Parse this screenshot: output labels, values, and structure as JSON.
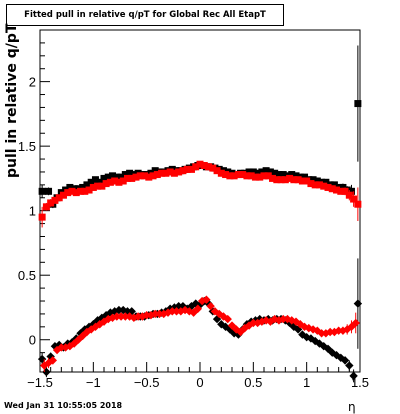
{
  "chart_data": {
    "type": "scatter",
    "title": "Fitted pull in relative q/pT for Global Rec All EtapT",
    "xlabel": "η",
    "ylabel": "pull in relative q/pT",
    "xlim": [
      -1.5,
      1.5
    ],
    "ylim": [
      -0.25,
      2.4
    ],
    "x_ticks": [
      "−1.5",
      "−1",
      "−0.5",
      "0",
      "0.5",
      "1",
      "1.5"
    ],
    "y_ticks": [
      "0",
      "0.5",
      "1",
      "1.5",
      "2"
    ],
    "legend": "none",
    "grid": false,
    "footer": "Wed Jan 31 10:55:05 2018",
    "series": [
      {
        "color": "#000000",
        "marker": "square",
        "x": [
          -1.48,
          -1.42,
          -1.38,
          -1.34,
          -1.3,
          -1.26,
          -1.22,
          -1.18,
          -1.14,
          -1.1,
          -1.06,
          -1.02,
          -0.98,
          -0.94,
          -0.9,
          -0.86,
          -0.82,
          -0.78,
          -0.74,
          -0.7,
          -0.66,
          -0.62,
          -0.58,
          -0.54,
          -0.5,
          -0.46,
          -0.42,
          -0.38,
          -0.34,
          -0.3,
          -0.26,
          -0.22,
          -0.18,
          -0.14,
          -0.1,
          -0.06,
          -0.02,
          0.02,
          0.06,
          0.1,
          0.14,
          0.18,
          0.22,
          0.26,
          0.3,
          0.34,
          0.38,
          0.42,
          0.46,
          0.5,
          0.54,
          0.58,
          0.62,
          0.66,
          0.7,
          0.74,
          0.78,
          0.82,
          0.86,
          0.9,
          0.94,
          0.98,
          1.02,
          1.06,
          1.1,
          1.14,
          1.18,
          1.22,
          1.26,
          1.3,
          1.34,
          1.38,
          1.42,
          1.48
        ],
        "y": [
          1.15,
          1.15,
          1.05,
          1.1,
          1.14,
          1.16,
          1.18,
          1.17,
          1.17,
          1.18,
          1.2,
          1.22,
          1.24,
          1.22,
          1.25,
          1.26,
          1.27,
          1.26,
          1.26,
          1.28,
          1.29,
          1.28,
          1.29,
          1.28,
          1.28,
          1.29,
          1.31,
          1.3,
          1.3,
          1.31,
          1.32,
          1.31,
          1.31,
          1.32,
          1.33,
          1.34,
          1.35,
          1.35,
          1.34,
          1.34,
          1.33,
          1.32,
          1.31,
          1.3,
          1.29,
          1.28,
          1.29,
          1.29,
          1.3,
          1.3,
          1.29,
          1.3,
          1.31,
          1.3,
          1.29,
          1.28,
          1.28,
          1.27,
          1.28,
          1.27,
          1.26,
          1.26,
          1.24,
          1.24,
          1.23,
          1.22,
          1.22,
          1.2,
          1.2,
          1.18,
          1.18,
          1.16,
          1.15,
          1.83
        ],
        "err": [
          0.05,
          0.03,
          0.03,
          0.02,
          0.02,
          0.02,
          0.02,
          0.02,
          0.02,
          0.02,
          0.02,
          0.02,
          0.02,
          0.02,
          0.02,
          0.02,
          0.02,
          0.02,
          0.02,
          0.02,
          0.02,
          0.02,
          0.02,
          0.02,
          0.02,
          0.02,
          0.02,
          0.02,
          0.02,
          0.02,
          0.02,
          0.02,
          0.02,
          0.02,
          0.02,
          0.02,
          0.02,
          0.02,
          0.02,
          0.02,
          0.02,
          0.02,
          0.02,
          0.02,
          0.02,
          0.02,
          0.02,
          0.02,
          0.02,
          0.02,
          0.02,
          0.02,
          0.02,
          0.02,
          0.02,
          0.02,
          0.02,
          0.02,
          0.02,
          0.02,
          0.02,
          0.02,
          0.02,
          0.02,
          0.02,
          0.02,
          0.02,
          0.02,
          0.02,
          0.02,
          0.03,
          0.03,
          0.05,
          0.45
        ]
      },
      {
        "color": "#ff0000",
        "marker": "square",
        "x": [
          -1.48,
          -1.44,
          -1.4,
          -1.36,
          -1.32,
          -1.28,
          -1.24,
          -1.2,
          -1.16,
          -1.12,
          -1.08,
          -1.04,
          -1.0,
          -0.96,
          -0.92,
          -0.88,
          -0.84,
          -0.8,
          -0.76,
          -0.72,
          -0.68,
          -0.64,
          -0.6,
          -0.56,
          -0.52,
          -0.48,
          -0.44,
          -0.4,
          -0.36,
          -0.32,
          -0.28,
          -0.24,
          -0.2,
          -0.16,
          -0.12,
          -0.08,
          -0.04,
          0.0,
          0.04,
          0.08,
          0.12,
          0.16,
          0.2,
          0.24,
          0.28,
          0.32,
          0.36,
          0.4,
          0.44,
          0.48,
          0.52,
          0.56,
          0.6,
          0.64,
          0.68,
          0.72,
          0.76,
          0.8,
          0.84,
          0.88,
          0.92,
          0.96,
          1.0,
          1.04,
          1.08,
          1.12,
          1.16,
          1.2,
          1.24,
          1.28,
          1.32,
          1.36,
          1.4,
          1.44,
          1.48
        ],
        "y": [
          0.95,
          1.03,
          1.06,
          1.08,
          1.1,
          1.12,
          1.14,
          1.15,
          1.14,
          1.15,
          1.15,
          1.16,
          1.18,
          1.19,
          1.19,
          1.21,
          1.22,
          1.23,
          1.22,
          1.23,
          1.25,
          1.25,
          1.26,
          1.27,
          1.27,
          1.26,
          1.27,
          1.28,
          1.29,
          1.29,
          1.3,
          1.29,
          1.3,
          1.31,
          1.32,
          1.32,
          1.34,
          1.36,
          1.35,
          1.34,
          1.33,
          1.31,
          1.29,
          1.28,
          1.27,
          1.27,
          1.28,
          1.28,
          1.27,
          1.27,
          1.26,
          1.26,
          1.27,
          1.27,
          1.25,
          1.24,
          1.24,
          1.24,
          1.25,
          1.24,
          1.24,
          1.23,
          1.23,
          1.21,
          1.2,
          1.2,
          1.19,
          1.18,
          1.17,
          1.16,
          1.15,
          1.15,
          1.12,
          1.09,
          1.05
        ],
        "err": [
          0.08,
          0.03,
          0.03,
          0.02,
          0.02,
          0.02,
          0.02,
          0.02,
          0.02,
          0.02,
          0.02,
          0.02,
          0.02,
          0.02,
          0.02,
          0.02,
          0.02,
          0.02,
          0.02,
          0.02,
          0.02,
          0.02,
          0.02,
          0.02,
          0.02,
          0.02,
          0.02,
          0.02,
          0.02,
          0.02,
          0.02,
          0.02,
          0.02,
          0.02,
          0.02,
          0.02,
          0.02,
          0.02,
          0.02,
          0.02,
          0.02,
          0.02,
          0.02,
          0.02,
          0.02,
          0.02,
          0.02,
          0.02,
          0.02,
          0.02,
          0.02,
          0.02,
          0.02,
          0.02,
          0.02,
          0.02,
          0.02,
          0.02,
          0.02,
          0.02,
          0.02,
          0.02,
          0.02,
          0.02,
          0.02,
          0.02,
          0.02,
          0.02,
          0.02,
          0.02,
          0.02,
          0.03,
          0.04,
          0.06,
          0.13
        ]
      },
      {
        "color": "#000000",
        "marker": "diamond",
        "x": [
          -1.48,
          -1.44,
          -1.4,
          -1.36,
          -1.32,
          -1.28,
          -1.24,
          -1.2,
          -1.16,
          -1.12,
          -1.08,
          -1.04,
          -1.0,
          -0.96,
          -0.92,
          -0.88,
          -0.84,
          -0.8,
          -0.76,
          -0.72,
          -0.68,
          -0.64,
          -0.6,
          -0.56,
          -0.52,
          -0.48,
          -0.44,
          -0.4,
          -0.36,
          -0.32,
          -0.28,
          -0.24,
          -0.2,
          -0.16,
          -0.12,
          -0.08,
          -0.04,
          0.0,
          0.04,
          0.08,
          0.12,
          0.16,
          0.2,
          0.24,
          0.28,
          0.32,
          0.36,
          0.4,
          0.44,
          0.48,
          0.52,
          0.56,
          0.6,
          0.64,
          0.68,
          0.72,
          0.76,
          0.8,
          0.84,
          0.88,
          0.92,
          0.96,
          1.0,
          1.04,
          1.08,
          1.12,
          1.16,
          1.2,
          1.24,
          1.28,
          1.32,
          1.36,
          1.4,
          1.44,
          1.48
        ],
        "y": [
          -0.15,
          -0.25,
          -0.13,
          -0.05,
          -0.04,
          -0.06,
          -0.03,
          -0.02,
          0.01,
          0.05,
          0.08,
          0.1,
          0.12,
          0.15,
          0.17,
          0.19,
          0.21,
          0.22,
          0.23,
          0.23,
          0.22,
          0.22,
          0.18,
          0.18,
          0.18,
          0.19,
          0.2,
          0.2,
          0.21,
          0.22,
          0.24,
          0.25,
          0.26,
          0.26,
          0.24,
          0.26,
          0.28,
          0.27,
          0.3,
          0.28,
          0.22,
          0.16,
          0.12,
          0.1,
          0.08,
          0.05,
          0.04,
          0.08,
          0.12,
          0.14,
          0.15,
          0.16,
          0.15,
          0.16,
          0.15,
          0.16,
          0.16,
          0.15,
          0.13,
          0.1,
          0.08,
          0.04,
          0.02,
          0.01,
          -0.01,
          -0.03,
          -0.05,
          -0.07,
          -0.1,
          -0.12,
          -0.14,
          -0.16,
          -0.2,
          -0.28,
          0.28
        ],
        "err": [
          0.05,
          0.04,
          0.03,
          0.02,
          0.02,
          0.02,
          0.02,
          0.02,
          0.02,
          0.02,
          0.02,
          0.02,
          0.02,
          0.02,
          0.02,
          0.02,
          0.02,
          0.02,
          0.02,
          0.02,
          0.02,
          0.02,
          0.02,
          0.02,
          0.02,
          0.02,
          0.02,
          0.02,
          0.02,
          0.02,
          0.02,
          0.02,
          0.02,
          0.02,
          0.02,
          0.02,
          0.02,
          0.02,
          0.02,
          0.02,
          0.02,
          0.02,
          0.02,
          0.02,
          0.02,
          0.02,
          0.02,
          0.02,
          0.02,
          0.02,
          0.02,
          0.02,
          0.02,
          0.02,
          0.02,
          0.02,
          0.02,
          0.02,
          0.02,
          0.02,
          0.02,
          0.02,
          0.02,
          0.02,
          0.02,
          0.02,
          0.02,
          0.02,
          0.02,
          0.02,
          0.02,
          0.03,
          0.04,
          0.05,
          0.35
        ]
      },
      {
        "color": "#ff0000",
        "marker": "diamond",
        "x": [
          -1.46,
          -1.42,
          -1.38,
          -1.34,
          -1.3,
          -1.26,
          -1.22,
          -1.18,
          -1.14,
          -1.1,
          -1.06,
          -1.02,
          -0.98,
          -0.94,
          -0.9,
          -0.86,
          -0.82,
          -0.78,
          -0.74,
          -0.7,
          -0.66,
          -0.62,
          -0.58,
          -0.54,
          -0.5,
          -0.46,
          -0.42,
          -0.38,
          -0.34,
          -0.3,
          -0.26,
          -0.22,
          -0.18,
          -0.14,
          -0.1,
          -0.06,
          -0.02,
          0.02,
          0.06,
          0.1,
          0.14,
          0.18,
          0.22,
          0.26,
          0.3,
          0.34,
          0.38,
          0.42,
          0.46,
          0.5,
          0.54,
          0.58,
          0.62,
          0.66,
          0.7,
          0.74,
          0.78,
          0.82,
          0.86,
          0.9,
          0.94,
          0.98,
          1.02,
          1.06,
          1.1,
          1.14,
          1.18,
          1.22,
          1.26,
          1.3,
          1.34,
          1.38,
          1.42,
          1.46
        ],
        "y": [
          -0.2,
          -0.18,
          -0.16,
          -0.08,
          -0.06,
          -0.06,
          -0.05,
          -0.03,
          0.0,
          0.03,
          0.06,
          0.08,
          0.1,
          0.12,
          0.14,
          0.16,
          0.17,
          0.18,
          0.18,
          0.18,
          0.18,
          0.17,
          0.18,
          0.18,
          0.19,
          0.19,
          0.2,
          0.2,
          0.2,
          0.21,
          0.22,
          0.22,
          0.22,
          0.23,
          0.22,
          0.21,
          0.24,
          0.3,
          0.31,
          0.26,
          0.22,
          0.2,
          0.18,
          0.16,
          0.11,
          0.08,
          0.06,
          0.09,
          0.11,
          0.13,
          0.13,
          0.14,
          0.15,
          0.14,
          0.16,
          0.15,
          0.16,
          0.16,
          0.15,
          0.14,
          0.12,
          0.1,
          0.09,
          0.08,
          0.07,
          0.05,
          0.05,
          0.06,
          0.06,
          0.07,
          0.07,
          0.08,
          0.1,
          0.13
        ],
        "err": [
          0.05,
          0.04,
          0.03,
          0.02,
          0.02,
          0.02,
          0.02,
          0.02,
          0.02,
          0.02,
          0.02,
          0.02,
          0.02,
          0.02,
          0.02,
          0.02,
          0.02,
          0.02,
          0.02,
          0.02,
          0.02,
          0.02,
          0.02,
          0.02,
          0.02,
          0.02,
          0.02,
          0.02,
          0.02,
          0.02,
          0.02,
          0.02,
          0.02,
          0.02,
          0.02,
          0.02,
          0.02,
          0.02,
          0.02,
          0.02,
          0.02,
          0.02,
          0.02,
          0.02,
          0.02,
          0.02,
          0.02,
          0.02,
          0.02,
          0.02,
          0.02,
          0.02,
          0.02,
          0.02,
          0.02,
          0.02,
          0.02,
          0.02,
          0.02,
          0.02,
          0.02,
          0.02,
          0.02,
          0.02,
          0.02,
          0.02,
          0.02,
          0.02,
          0.02,
          0.02,
          0.03,
          0.04,
          0.05,
          0.08
        ]
      }
    ]
  }
}
